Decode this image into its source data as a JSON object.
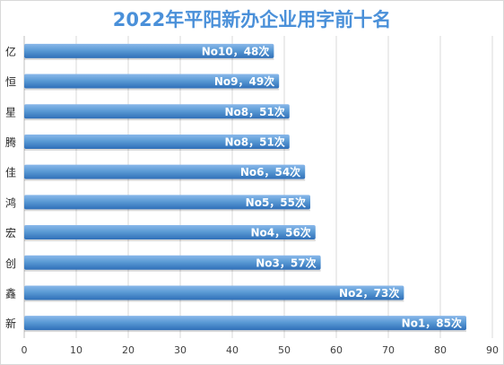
{
  "chart_data": {
    "type": "bar",
    "orientation": "horizontal",
    "title": "2022年平阳新办企业用字前十名",
    "xlabel": "",
    "ylabel": "",
    "xlim": [
      0,
      90
    ],
    "xticks": [
      0,
      10,
      20,
      30,
      40,
      50,
      60,
      70,
      80,
      90
    ],
    "grid": true,
    "categories": [
      "亿",
      "恒",
      "星",
      "腾",
      "佳",
      "鸿",
      "宏",
      "创",
      "鑫",
      "新"
    ],
    "values": [
      48,
      49,
      51,
      51,
      54,
      55,
      56,
      57,
      73,
      85
    ],
    "data_labels": [
      "No10，48次",
      "No9，49次",
      "No8，51次",
      "No8，51次",
      "No6，54次",
      "No5，55次",
      "No4，56次",
      "No3，57次",
      "No2，73次",
      "No1，85次"
    ],
    "colors": {
      "bar_top": "#8ab8ea",
      "bar_mid": "#5b9bd5",
      "bar_bottom": "#2f6fb8",
      "gridline": "#d9d9d9",
      "title": "#4a90d9"
    }
  }
}
